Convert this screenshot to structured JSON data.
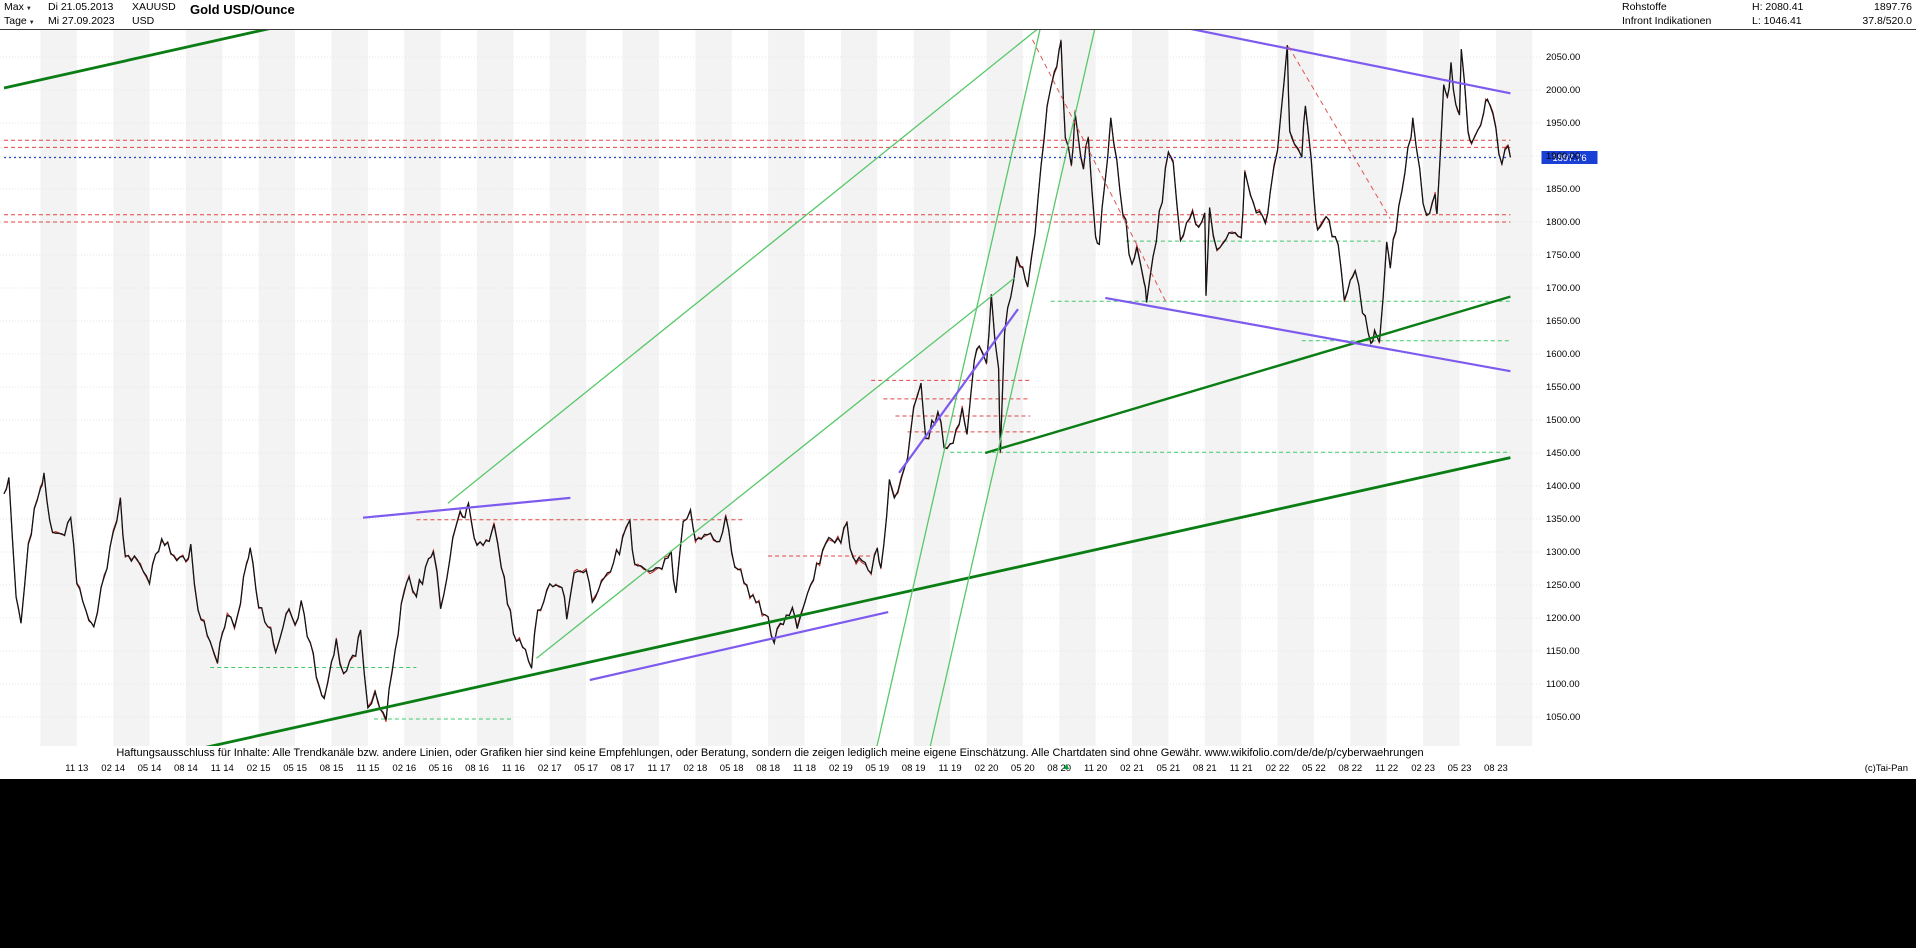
{
  "header": {
    "range": "Max",
    "date_from": "Di 21.05.2013",
    "symbol": "XAUUSD",
    "title": "Gold USD/Ounce",
    "period": "Tage",
    "date_to": "Mi 27.09.2023",
    "currency": "USD",
    "category": "Rohstoffe",
    "high": "H: 2080.41",
    "last": "1897.76",
    "source": "Infront Indikationen",
    "low": "L: 1046.41",
    "extra": "37.8/520.0"
  },
  "y_axis": {
    "tick_prices": [
      2050,
      2000,
      1950,
      1900,
      1850,
      1800,
      1750,
      1700,
      1650,
      1600,
      1550,
      1500,
      1450,
      1400,
      1350,
      1300,
      1250,
      1200,
      1150,
      1100,
      1050
    ]
  },
  "x_axis": {
    "first_month": 6,
    "step_months": 3,
    "labels": [
      "11 13",
      "02 14",
      "05 14",
      "08 14",
      "11 14",
      "02 15",
      "05 15",
      "08 15",
      "11 15",
      "02 16",
      "05 16",
      "08 16",
      "11 16",
      "02 17",
      "05 17",
      "08 17",
      "11 17",
      "02 18",
      "05 18",
      "08 18",
      "11 18",
      "02 19",
      "05 19",
      "08 19",
      "11 19",
      "02 20",
      "05 20",
      "08 20",
      "11 20",
      "02 21",
      "05 21",
      "08 21",
      "11 21",
      "02 22",
      "05 22",
      "08 22",
      "11 22",
      "02 23",
      "05 23",
      "08 23"
    ]
  },
  "chart_data": {
    "type": "candlestick",
    "symbol": "XAUUSD",
    "title": "Gold USD/Ounce",
    "timeframe": "Tage (daily)",
    "x_unit": "months since 2013-05",
    "x_range": [
      0,
      124.2
    ],
    "visible_price_range": [
      1006,
      2091
    ],
    "high": 2080.41,
    "low": 1046.41,
    "last_price": 1897.76,
    "grid": true,
    "series": [
      [
        0,
        1388
      ],
      [
        0.4,
        1413
      ],
      [
        1,
        1232
      ],
      [
        1.4,
        1192
      ],
      [
        2,
        1312
      ],
      [
        3,
        1396
      ],
      [
        3.3,
        1420
      ],
      [
        4,
        1330
      ],
      [
        5,
        1325
      ],
      [
        5.5,
        1352
      ],
      [
        6,
        1252
      ],
      [
        7,
        1196
      ],
      [
        7.4,
        1187
      ],
      [
        8,
        1246
      ],
      [
        9,
        1330
      ],
      [
        9.6,
        1382
      ],
      [
        10,
        1294
      ],
      [
        11,
        1288
      ],
      [
        11.5,
        1270
      ],
      [
        12,
        1252
      ],
      [
        13,
        1320
      ],
      [
        14,
        1294
      ],
      [
        15,
        1286
      ],
      [
        15.4,
        1312
      ],
      [
        16,
        1212
      ],
      [
        17,
        1164
      ],
      [
        17.6,
        1132
      ],
      [
        18,
        1176
      ],
      [
        18.4,
        1204
      ],
      [
        19,
        1186
      ],
      [
        20,
        1282
      ],
      [
        20.3,
        1306
      ],
      [
        21,
        1216
      ],
      [
        22,
        1184
      ],
      [
        22.4,
        1148
      ],
      [
        23,
        1186
      ],
      [
        23.5,
        1214
      ],
      [
        24,
        1190
      ],
      [
        24.5,
        1226
      ],
      [
        25,
        1172
      ],
      [
        26,
        1096
      ],
      [
        26.4,
        1078
      ],
      [
        27,
        1134
      ],
      [
        27.4,
        1168
      ],
      [
        28,
        1116
      ],
      [
        29,
        1142
      ],
      [
        29.4,
        1182
      ],
      [
        30,
        1064
      ],
      [
        30.6,
        1088
      ],
      [
        31,
        1062
      ],
      [
        31.5,
        1046
      ],
      [
        32,
        1118
      ],
      [
        33,
        1240
      ],
      [
        33.4,
        1262
      ],
      [
        34,
        1232
      ],
      [
        35,
        1290
      ],
      [
        35.4,
        1300
      ],
      [
        36,
        1214
      ],
      [
        37,
        1322
      ],
      [
        37.6,
        1362
      ],
      [
        38,
        1352
      ],
      [
        38.3,
        1374
      ],
      [
        39,
        1310
      ],
      [
        40,
        1316
      ],
      [
        40.4,
        1342
      ],
      [
        41,
        1276
      ],
      [
        42,
        1176
      ],
      [
        43,
        1152
      ],
      [
        43.5,
        1124
      ],
      [
        44,
        1212
      ],
      [
        45,
        1252
      ],
      [
        46,
        1246
      ],
      [
        46.4,
        1198
      ],
      [
        47,
        1268
      ],
      [
        48,
        1272
      ],
      [
        48.5,
        1224
      ],
      [
        49,
        1242
      ],
      [
        50,
        1270
      ],
      [
        51,
        1322
      ],
      [
        51.6,
        1348
      ],
      [
        52,
        1282
      ],
      [
        53,
        1272
      ],
      [
        54,
        1276
      ],
      [
        55,
        1302
      ],
      [
        55.4,
        1238
      ],
      [
        56,
        1346
      ],
      [
        56.6,
        1364
      ],
      [
        57,
        1318
      ],
      [
        58,
        1326
      ],
      [
        59,
        1316
      ],
      [
        59.5,
        1354
      ],
      [
        60,
        1300
      ],
      [
        61,
        1254
      ],
      [
        62,
        1224
      ],
      [
        63,
        1202
      ],
      [
        63.5,
        1162
      ],
      [
        64,
        1192
      ],
      [
        65,
        1216
      ],
      [
        65.4,
        1184
      ],
      [
        66,
        1222
      ],
      [
        67,
        1282
      ],
      [
        68,
        1322
      ],
      [
        69,
        1314
      ],
      [
        69.5,
        1344
      ],
      [
        70,
        1292
      ],
      [
        71,
        1284
      ],
      [
        71.5,
        1268
      ],
      [
        72,
        1306
      ],
      [
        72.3,
        1276
      ],
      [
        73,
        1410
      ],
      [
        73.4,
        1382
      ],
      [
        74,
        1414
      ],
      [
        74.5,
        1442
      ],
      [
        75,
        1520
      ],
      [
        75.6,
        1556
      ],
      [
        76,
        1472
      ],
      [
        77,
        1512
      ],
      [
        77.5,
        1458
      ],
      [
        78,
        1464
      ],
      [
        79,
        1518
      ],
      [
        79.4,
        1478
      ],
      [
        80,
        1590
      ],
      [
        80.4,
        1612
      ],
      [
        81,
        1586
      ],
      [
        81.4,
        1690
      ],
      [
        82,
        1578
      ],
      [
        82.15,
        1452
      ],
      [
        82.5,
        1632
      ],
      [
        83,
        1686
      ],
      [
        83.5,
        1748
      ],
      [
        84,
        1730
      ],
      [
        84.4,
        1702
      ],
      [
        85,
        1782
      ],
      [
        86,
        1976
      ],
      [
        86.6,
        2028
      ],
      [
        87,
        2062
      ],
      [
        87.15,
        2075
      ],
      [
        87.5,
        1928
      ],
      [
        88,
        1886
      ],
      [
        88.3,
        1966
      ],
      [
        89,
        1880
      ],
      [
        89.4,
        1928
      ],
      [
        90,
        1778
      ],
      [
        90.3,
        1766
      ],
      [
        91,
        1898
      ],
      [
        91.25,
        1958
      ],
      [
        92,
        1848
      ],
      [
        93,
        1736
      ],
      [
        93.4,
        1762
      ],
      [
        94,
        1708
      ],
      [
        94.2,
        1678
      ],
      [
        95,
        1770
      ],
      [
        96,
        1906
      ],
      [
        96.4,
        1890
      ],
      [
        97,
        1772
      ],
      [
        98,
        1816
      ],
      [
        98.5,
        1792
      ],
      [
        99,
        1814
      ],
      [
        99.1,
        1688
      ],
      [
        99.4,
        1822
      ],
      [
        100,
        1758
      ],
      [
        101,
        1784
      ],
      [
        102,
        1776
      ],
      [
        102.3,
        1876
      ],
      [
        103,
        1830
      ],
      [
        104,
        1798
      ],
      [
        104.4,
        1846
      ],
      [
        105,
        1908
      ],
      [
        105.8,
        2068
      ],
      [
        106,
        1938
      ],
      [
        106.4,
        1918
      ],
      [
        107,
        1898
      ],
      [
        107.3,
        1976
      ],
      [
        108,
        1838
      ],
      [
        108.3,
        1788
      ],
      [
        109,
        1808
      ],
      [
        110,
        1766
      ],
      [
        110.5,
        1682
      ],
      [
        111,
        1712
      ],
      [
        111.4,
        1726
      ],
      [
        112,
        1662
      ],
      [
        112.7,
        1616
      ],
      [
        113,
        1636
      ],
      [
        113.4,
        1618
      ],
      [
        114,
        1770
      ],
      [
        114.3,
        1730
      ],
      [
        115,
        1824
      ],
      [
        116,
        1928
      ],
      [
        116.15,
        1958
      ],
      [
        117,
        1828
      ],
      [
        117.3,
        1810
      ],
      [
        118,
        1842
      ],
      [
        118.15,
        1812
      ],
      [
        118.7,
        2008
      ],
      [
        119,
        1990
      ],
      [
        119.3,
        2042
      ],
      [
        119.7,
        1978
      ],
      [
        120,
        1962
      ],
      [
        120.15,
        2062
      ],
      [
        120.7,
        1938
      ],
      [
        121,
        1920
      ],
      [
        122,
        1966
      ],
      [
        122.3,
        1986
      ],
      [
        123,
        1942
      ],
      [
        123.5,
        1888
      ],
      [
        124,
        1915
      ],
      [
        124.2,
        1898
      ]
    ],
    "levels": [
      {
        "price": 1924,
        "from": 0,
        "to": 124.2,
        "color": "red"
      },
      {
        "price": 1913,
        "from": 0,
        "to": 124.2,
        "color": "red"
      },
      {
        "price": 1811,
        "from": 0,
        "to": 124.2,
        "color": "red"
      },
      {
        "price": 1800,
        "from": 0,
        "to": 124.2,
        "color": "red"
      },
      {
        "price": 1897.76,
        "from": 0,
        "to": 123.9,
        "color": "blue"
      },
      {
        "price": 1680,
        "from": 86.3,
        "to": 124.2,
        "color": "green"
      },
      {
        "price": 1620,
        "from": 107,
        "to": 124.2,
        "color": "green"
      },
      {
        "price": 1771,
        "from": 92.5,
        "to": 113.5,
        "color": "green"
      },
      {
        "price": 1451,
        "from": 78,
        "to": 124.2,
        "color": "green"
      },
      {
        "price": 1125,
        "from": 17,
        "to": 34,
        "color": "green"
      },
      {
        "price": 1047,
        "from": 30.5,
        "to": 42,
        "color": "green"
      },
      {
        "price": 1560,
        "from": 71.5,
        "to": 84.6,
        "color": "red"
      },
      {
        "price": 1532,
        "from": 72.5,
        "to": 84.6,
        "color": "red"
      },
      {
        "price": 1506,
        "from": 73.5,
        "to": 84.6,
        "color": "red"
      },
      {
        "price": 1482,
        "from": 74.5,
        "to": 85,
        "color": "red"
      },
      {
        "price": 1349,
        "from": 34,
        "to": 61,
        "color": "red"
      },
      {
        "price": 1294,
        "from": 63,
        "to": 71.5,
        "color": "red"
      }
    ],
    "trendlines": [
      {
        "p": [
          [
            0,
            2003
          ],
          [
            21.9,
            2093
          ]
        ],
        "color": "dark_green",
        "w": 2.8
      },
      {
        "p": [
          [
            10,
            977
          ],
          [
            124.2,
            1443
          ]
        ],
        "color": "dark_green",
        "w": 2.8
      },
      {
        "p": [
          [
            80.9,
            1450
          ],
          [
            124.2,
            1687
          ]
        ],
        "color": "dark_green",
        "w": 2.4
      },
      {
        "p": [
          [
            36.6,
            1374
          ],
          [
            85.6,
            2098
          ]
        ],
        "color": "light_green",
        "w": 1.3
      },
      {
        "p": [
          [
            43.9,
            1139
          ],
          [
            83.3,
            1715
          ]
        ],
        "color": "light_green",
        "w": 1.3
      },
      {
        "p": [
          [
            71.9,
            1000
          ],
          [
            85.5,
            2098
          ]
        ],
        "color": "light_green",
        "w": 1.3
      },
      {
        "p": [
          [
            76.3,
            1000
          ],
          [
            90,
            2098
          ]
        ],
        "color": "light_green",
        "w": 1.3
      },
      {
        "p": [
          [
            92.6,
            2112
          ],
          [
            124.2,
            1995
          ]
        ],
        "color": "purple",
        "w": 2.2
      },
      {
        "p": [
          [
            90.8,
            1685
          ],
          [
            124.2,
            1574
          ]
        ],
        "color": "purple",
        "w": 2.2
      },
      {
        "p": [
          [
            73.8,
            1420
          ],
          [
            83.6,
            1668
          ]
        ],
        "color": "purple",
        "w": 2.2
      },
      {
        "p": [
          [
            48.3,
            1106
          ],
          [
            72.9,
            1209
          ]
        ],
        "color": "purple",
        "w": 2.2
      },
      {
        "p": [
          [
            29.6,
            1352
          ],
          [
            46.7,
            1382
          ]
        ],
        "color": "purple",
        "w": 2.2
      },
      {
        "p": [
          [
            84.8,
            2076
          ],
          [
            95.8,
            1679
          ]
        ],
        "color": "red_diag",
        "w": 1,
        "dash": "5,4"
      },
      {
        "p": [
          [
            105.9,
            2066
          ],
          [
            114.3,
            1805
          ]
        ],
        "color": "red_diag",
        "w": 1,
        "dash": "5,4"
      }
    ]
  },
  "footer": {
    "disclaimer": "Haftungsausschluss für Inhalte: Alle Trendkanäle bzw. andere Linien, oder Grafiken hier sind keine Empfehlungen, oder Beratung, sondern die zeigen lediglich meine eigene Einschätzung. Alle Chartdaten sind ohne Gewähr.  www.wikifolio.com/de/de/p/cyberwaehrungen",
    "credit": "(c)Tai-Pan",
    "marker_month": 87.6,
    "marker_glyph": "▲"
  },
  "colors": {
    "red_level": "#e04545",
    "green_level": "#3fc96a",
    "blue_line": "#2244cc",
    "dark_green": "#0a7d14",
    "light_green": "#58c86a",
    "purple": "#7e5bef",
    "red_diag": "#e05555",
    "candle_black": "#141414",
    "candle_red": "#c42a2a",
    "stripe": "#f3f3f3",
    "grid": "#e4e4e4",
    "badge_bg": "#1a3fd4",
    "badge_fg": "#ffffff"
  }
}
